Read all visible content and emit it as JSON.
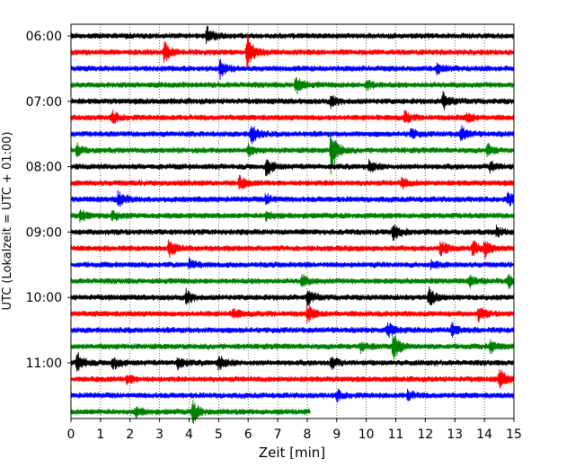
{
  "chart_data": {
    "type": "line",
    "title": "",
    "xlabel": "Zeit  [min]",
    "ylabel": "UTC (Lokalzeit = UTC + 01:00)",
    "xlim": [
      0,
      15
    ],
    "x_ticks": [
      0,
      1,
      2,
      3,
      4,
      5,
      6,
      7,
      8,
      9,
      10,
      11,
      12,
      13,
      14,
      15
    ],
    "x_tick_labels": [
      "0",
      "1",
      "2",
      "3",
      "4",
      "5",
      "6",
      "7",
      "8",
      "9",
      "10",
      "11",
      "12",
      "13",
      "14",
      "15"
    ],
    "y_tick_labels": [
      {
        "label": "06:00",
        "trace": 0
      },
      {
        "label": "07:00",
        "trace": 4
      },
      {
        "label": "08:00",
        "trace": 8
      },
      {
        "label": "09:00",
        "trace": 12
      },
      {
        "label": "10:00",
        "trace": 16
      },
      {
        "label": "11:00",
        "trace": 20
      }
    ],
    "grid": "vertical dotted",
    "trace_interval_min": 15,
    "colors": [
      "#000000",
      "#ff0000",
      "#0000ff",
      "#008000"
    ],
    "traces": [
      {
        "start": "06:00",
        "color": "#000000",
        "duration_min": 15,
        "events": [
          [
            4.6,
            1.0
          ]
        ]
      },
      {
        "start": "06:15",
        "color": "#ff0000",
        "duration_min": 15,
        "events": [
          [
            5.95,
            2.3
          ],
          [
            3.15,
            1.2
          ]
        ]
      },
      {
        "start": "06:30",
        "color": "#0000ff",
        "duration_min": 15,
        "events": [
          [
            5.05,
            1.2
          ],
          [
            12.4,
            0.7
          ]
        ]
      },
      {
        "start": "06:45",
        "color": "#008000",
        "duration_min": 15,
        "events": [
          [
            7.6,
            1.2
          ],
          [
            10.0,
            0.6
          ]
        ]
      },
      {
        "start": "07:00",
        "color": "#000000",
        "duration_min": 15,
        "events": [
          [
            12.6,
            1.1
          ],
          [
            8.8,
            0.6
          ]
        ]
      },
      {
        "start": "07:15",
        "color": "#ff0000",
        "duration_min": 15,
        "events": [
          [
            1.4,
            0.8
          ],
          [
            11.3,
            0.7
          ],
          [
            13.4,
            0.6
          ]
        ]
      },
      {
        "start": "07:30",
        "color": "#0000ff",
        "duration_min": 15,
        "events": [
          [
            6.1,
            1.4
          ],
          [
            13.2,
            1.0
          ],
          [
            11.5,
            0.6
          ]
        ]
      },
      {
        "start": "07:45",
        "color": "#008000",
        "duration_min": 15,
        "events": [
          [
            8.8,
            2.8
          ],
          [
            0.2,
            0.8
          ],
          [
            14.1,
            0.7
          ],
          [
            6.0,
            0.6
          ]
        ]
      },
      {
        "start": "08:00",
        "color": "#000000",
        "duration_min": 15,
        "events": [
          [
            6.6,
            1.2
          ],
          [
            10.1,
            0.7
          ],
          [
            14.2,
            0.7
          ]
        ]
      },
      {
        "start": "08:15",
        "color": "#ff0000",
        "duration_min": 15,
        "events": [
          [
            5.7,
            0.8
          ],
          [
            11.2,
            0.6
          ]
        ]
      },
      {
        "start": "08:30",
        "color": "#0000ff",
        "duration_min": 15,
        "events": [
          [
            1.6,
            1.0
          ],
          [
            14.8,
            0.8
          ],
          [
            6.6,
            0.6
          ]
        ]
      },
      {
        "start": "08:45",
        "color": "#008000",
        "duration_min": 15,
        "events": [
          [
            0.3,
            0.7
          ],
          [
            1.4,
            0.6
          ],
          [
            6.6,
            0.6
          ]
        ]
      },
      {
        "start": "09:00",
        "color": "#000000",
        "duration_min": 15,
        "events": [
          [
            10.9,
            1.1
          ],
          [
            14.4,
            0.6
          ]
        ]
      },
      {
        "start": "09:15",
        "color": "#ff0000",
        "duration_min": 15,
        "events": [
          [
            3.3,
            1.2
          ],
          [
            12.5,
            1.0
          ],
          [
            14.0,
            1.2
          ],
          [
            13.6,
            0.9
          ]
        ]
      },
      {
        "start": "09:30",
        "color": "#0000ff",
        "duration_min": 15,
        "events": [
          [
            4.0,
            0.6
          ],
          [
            12.2,
            0.5
          ]
        ]
      },
      {
        "start": "09:45",
        "color": "#008000",
        "duration_min": 15,
        "events": [
          [
            7.8,
            0.8
          ],
          [
            14.8,
            0.9
          ],
          [
            13.5,
            0.6
          ]
        ]
      },
      {
        "start": "10:00",
        "color": "#000000",
        "duration_min": 15,
        "events": [
          [
            3.9,
            0.8
          ],
          [
            8.0,
            0.9
          ],
          [
            12.1,
            1.2
          ]
        ]
      },
      {
        "start": "10:15",
        "color": "#ff0000",
        "duration_min": 15,
        "events": [
          [
            8.0,
            1.1
          ],
          [
            13.8,
            0.9
          ],
          [
            5.5,
            0.6
          ]
        ]
      },
      {
        "start": "10:30",
        "color": "#0000ff",
        "duration_min": 15,
        "events": [
          [
            10.7,
            1.1
          ],
          [
            12.9,
            0.8
          ]
        ]
      },
      {
        "start": "10:45",
        "color": "#008000",
        "duration_min": 15,
        "events": [
          [
            10.9,
            1.8
          ],
          [
            14.2,
            0.8
          ],
          [
            9.8,
            0.6
          ]
        ]
      },
      {
        "start": "11:00",
        "color": "#000000",
        "duration_min": 15,
        "events": [
          [
            0.2,
            1.3
          ],
          [
            1.4,
            0.9
          ],
          [
            3.6,
            0.8
          ],
          [
            5.0,
            0.9
          ],
          [
            8.8,
            0.8
          ]
        ]
      },
      {
        "start": "11:15",
        "color": "#ff0000",
        "duration_min": 15,
        "events": [
          [
            14.5,
            1.3
          ],
          [
            1.9,
            0.6
          ]
        ]
      },
      {
        "start": "11:30",
        "color": "#0000ff",
        "duration_min": 15,
        "events": [
          [
            9.0,
            0.7
          ],
          [
            11.4,
            0.6
          ]
        ]
      },
      {
        "start": "11:45",
        "color": "#008000",
        "duration_min": 8.1,
        "events": [
          [
            4.1,
            1.5
          ],
          [
            2.2,
            0.6
          ]
        ]
      }
    ]
  }
}
